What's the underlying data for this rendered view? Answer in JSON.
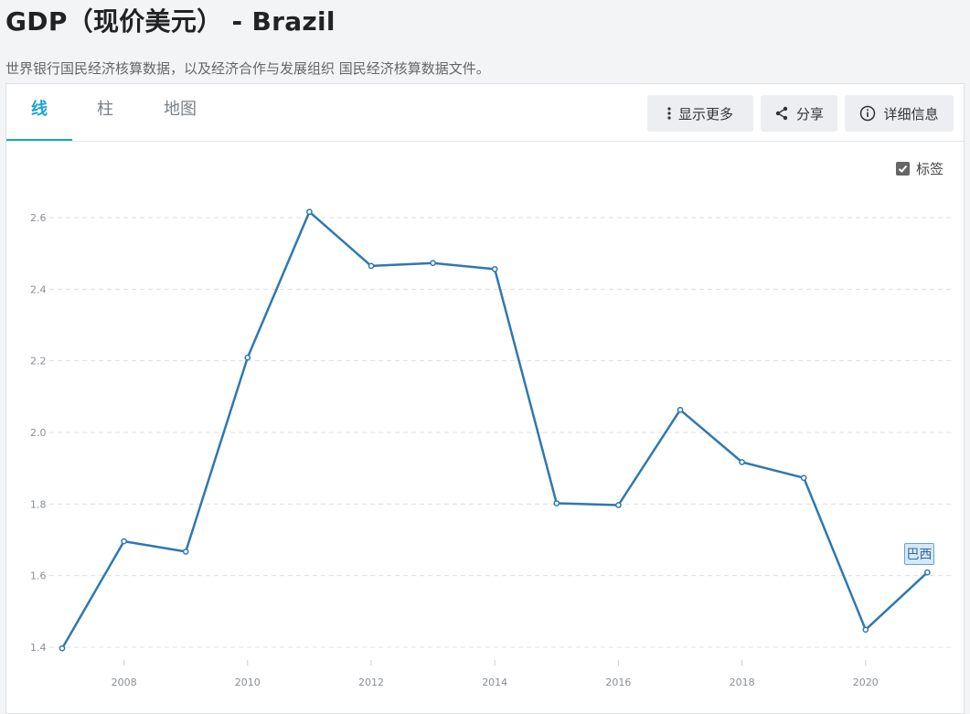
{
  "header": {
    "title": "GDP（现价美元） - Brazil",
    "subtitle": "世界银行国民经济核算数据，以及经济合作与发展组织 国民经济核算数据文件。"
  },
  "tabs": [
    {
      "label": "线",
      "active": true
    },
    {
      "label": "柱",
      "active": false
    },
    {
      "label": "地图",
      "active": false
    }
  ],
  "toolbar": {
    "more_label": "显示更多",
    "share_label": "分享",
    "details_label": "详细信息",
    "more_icon": "vertical-dots-icon",
    "share_icon": "share-icon",
    "details_icon": "info-icon"
  },
  "labels_toggle": {
    "label": "标签",
    "checked": true
  },
  "colors": {
    "line": "#2f78b0",
    "accent": "#1aa3d9"
  },
  "chart_data": {
    "type": "line",
    "title": "",
    "xlabel": "",
    "ylabel": "",
    "x": [
      2007,
      2008,
      2009,
      2010,
      2011,
      2012,
      2013,
      2014,
      2015,
      2016,
      2017,
      2018,
      2019,
      2020,
      2021
    ],
    "series": [
      {
        "name": "巴西",
        "values": [
          1.397,
          1.696,
          1.667,
          2.209,
          2.616,
          2.465,
          2.473,
          2.456,
          1.802,
          1.797,
          2.063,
          1.917,
          1.873,
          1.449,
          1.609
        ]
      }
    ],
    "ylim": [
      1.4,
      2.6
    ],
    "yticks": [
      "1.4",
      "1.6",
      "1.8",
      "2.0",
      "2.2",
      "2.4",
      "2.6"
    ],
    "xticks": [
      "2008",
      "2010",
      "2012",
      "2014",
      "2016",
      "2018",
      "2020"
    ],
    "grid": true
  }
}
